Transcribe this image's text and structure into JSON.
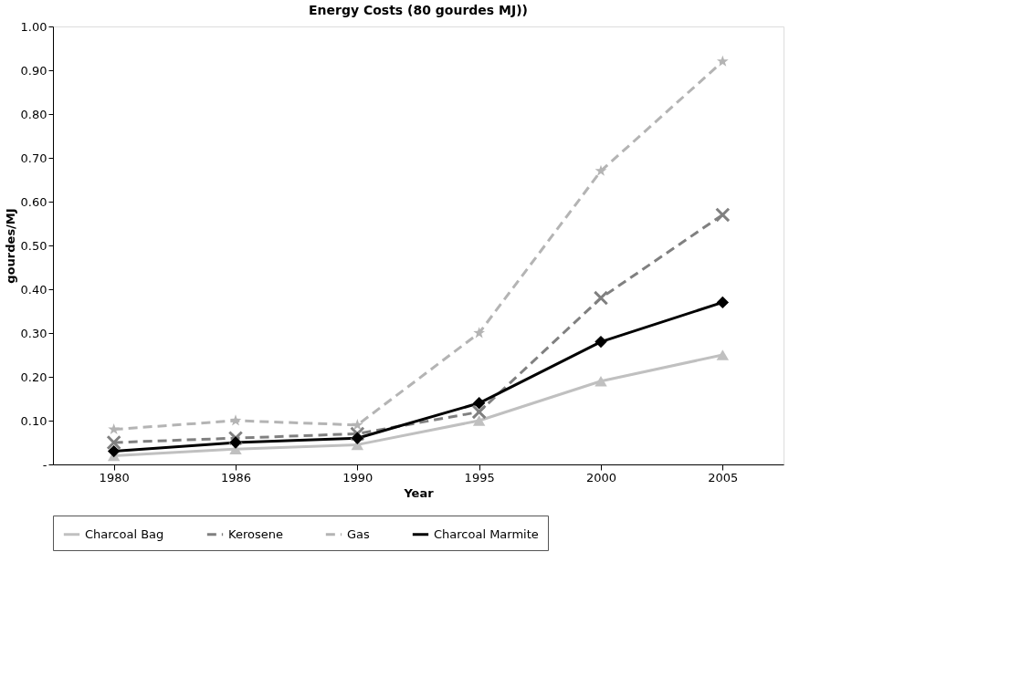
{
  "chart_data": {
    "type": "line",
    "title": "Energy Costs (80 gourdes MJ))",
    "xlabel": "Year",
    "ylabel": "gourdes/MJ",
    "categories": [
      "1980",
      "1986",
      "1990",
      "1995",
      "2000",
      "2005"
    ],
    "series": [
      {
        "name": "Charcoal Bag",
        "color": "#c0c0c0",
        "marker": "triangle",
        "line_style": "solid",
        "values": [
          0.02,
          0.035,
          0.045,
          0.1,
          0.19,
          0.25
        ]
      },
      {
        "name": "Kerosene",
        "color": "#808080",
        "marker": "cross",
        "line_style": "dashed",
        "values": [
          0.05,
          0.06,
          0.07,
          0.12,
          0.38,
          0.57
        ]
      },
      {
        "name": "Gas",
        "color": "#b4b4b4",
        "marker": "star",
        "line_style": "dashed",
        "values": [
          0.08,
          0.1,
          0.09,
          0.3,
          0.67,
          0.92
        ]
      },
      {
        "name": "Charcoal Marmite",
        "color": "#000000",
        "marker": "diamond",
        "line_style": "solid",
        "values": [
          0.03,
          0.05,
          0.06,
          0.14,
          0.28,
          0.37
        ]
      }
    ],
    "ylim": [
      0,
      1.0
    ],
    "yticks": [
      {
        "value": 0,
        "label": "-"
      },
      {
        "value": 0.1,
        "label": "0.10"
      },
      {
        "value": 0.2,
        "label": "0.20"
      },
      {
        "value": 0.3,
        "label": "0.30"
      },
      {
        "value": 0.4,
        "label": "0.40"
      },
      {
        "value": 0.5,
        "label": "0.50"
      },
      {
        "value": 0.6,
        "label": "0.60"
      },
      {
        "value": 0.7,
        "label": "0.70"
      },
      {
        "value": 0.8,
        "label": "0.80"
      },
      {
        "value": 0.9,
        "label": "0.90"
      },
      {
        "value": 1.0,
        "label": "1.00"
      }
    ],
    "grid": false,
    "legend": "bottom"
  }
}
